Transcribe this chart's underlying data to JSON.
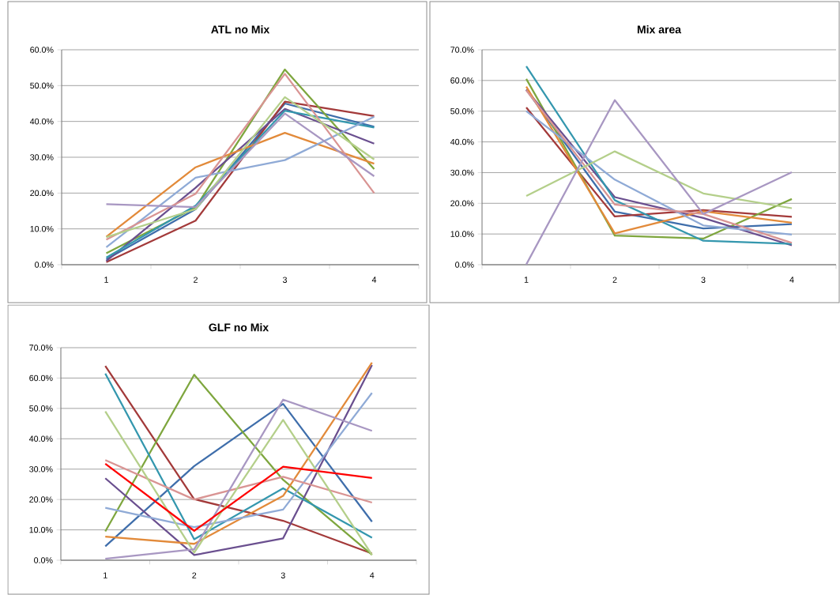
{
  "chart_data": [
    {
      "type": "line",
      "title": "ATL no Mix",
      "categories": [
        "1",
        "2",
        "3",
        "4"
      ],
      "ylim": [
        0,
        60
      ],
      "grid": "y",
      "yticks": [
        {
          "value": 0,
          "label": "0.0%"
        },
        {
          "value": 10,
          "label": "10.0%"
        },
        {
          "value": 20,
          "label": "20.0%"
        },
        {
          "value": 30,
          "label": "30.0%"
        },
        {
          "value": 40,
          "label": "40.0%"
        },
        {
          "value": 50,
          "label": "50.0%"
        },
        {
          "value": 60,
          "label": "60.0%"
        }
      ],
      "series": [
        {
          "color": "#3f6eab",
          "values": [
            1.5,
            15.5,
            45,
            38.5
          ]
        },
        {
          "color": "#a33a3a",
          "values": [
            0.7,
            12.3,
            45.5,
            41.5
          ]
        },
        {
          "color": "#7ea63e",
          "values": [
            3.2,
            16,
            54.5,
            26.7
          ]
        },
        {
          "color": "#6a4f8f",
          "values": [
            1,
            21.5,
            43.5,
            33.8
          ]
        },
        {
          "color": "#3497ae",
          "values": [
            2,
            16.5,
            43,
            38.3
          ]
        },
        {
          "color": "#e28a3a",
          "values": [
            7.8,
            27.2,
            36.8,
            28.2
          ]
        },
        {
          "color": "#8faad6",
          "values": [
            4.9,
            24.3,
            29.2,
            41.3
          ]
        },
        {
          "color": "#d99493",
          "values": [
            7,
            19.8,
            53.3,
            20
          ]
        },
        {
          "color": "#b4cf8a",
          "values": [
            7.7,
            15.5,
            46.8,
            29.4
          ]
        },
        {
          "color": "#a897c2",
          "values": [
            16.9,
            16.1,
            42.2,
            24.7
          ]
        }
      ]
    },
    {
      "type": "line",
      "title": "Mix area",
      "categories": [
        "1",
        "2",
        "3",
        "4"
      ],
      "ylim": [
        0,
        70
      ],
      "grid": "y",
      "yticks": [
        {
          "value": 0,
          "label": "0.0%"
        },
        {
          "value": 10,
          "label": "10.0%"
        },
        {
          "value": 20,
          "label": "20.0%"
        },
        {
          "value": 30,
          "label": "30.0%"
        },
        {
          "value": 40,
          "label": "40.0%"
        },
        {
          "value": 50,
          "label": "50.0%"
        },
        {
          "value": 60,
          "label": "60.0%"
        },
        {
          "value": 70,
          "label": "70.0%"
        }
      ],
      "series": [
        {
          "color": "#3f6eab",
          "values": [
            57,
            17.3,
            11.8,
            13.2
          ]
        },
        {
          "color": "#a33a3a",
          "values": [
            51.2,
            15.7,
            17.8,
            15.6
          ]
        },
        {
          "color": "#7ea63e",
          "values": [
            60.5,
            9.5,
            8.5,
            21.4
          ]
        },
        {
          "color": "#6a4f8f",
          "values": [
            57,
            22,
            15.2,
            6.3
          ]
        },
        {
          "color": "#3497ae",
          "values": [
            64.6,
            21,
            7.8,
            6.8
          ]
        },
        {
          "color": "#e28a3a",
          "values": [
            58,
            10.2,
            17.4,
            13.7
          ]
        },
        {
          "color": "#8faad6",
          "values": [
            50,
            27.7,
            12.8,
            9.8
          ]
        },
        {
          "color": "#d99493",
          "values": [
            56.8,
            19.6,
            16.5,
            7.1
          ]
        },
        {
          "color": "#b4cf8a",
          "values": [
            22.4,
            36.9,
            23.2,
            18.4
          ]
        },
        {
          "color": "#a897c2",
          "values": [
            0.1,
            53.6,
            16.5,
            30.1
          ]
        }
      ]
    },
    {
      "type": "line",
      "title": "GLF no Mix",
      "categories": [
        "1",
        "2",
        "3",
        "4"
      ],
      "ylim": [
        0,
        70
      ],
      "grid": "y",
      "yticks": [
        {
          "value": 0,
          "label": "0.0%"
        },
        {
          "value": 10,
          "label": "10.0%"
        },
        {
          "value": 20,
          "label": "20.0%"
        },
        {
          "value": 30,
          "label": "30.0%"
        },
        {
          "value": 40,
          "label": "40.0%"
        },
        {
          "value": 50,
          "label": "50.0%"
        },
        {
          "value": 60,
          "label": "60.0%"
        },
        {
          "value": 70,
          "label": "70.0%"
        }
      ],
      "series": [
        {
          "color": "#3f6eab",
          "values": [
            4.6,
            31,
            51.5,
            12.7
          ]
        },
        {
          "color": "#a33a3a",
          "values": [
            64,
            20.1,
            13,
            2.2
          ]
        },
        {
          "color": "#7ea63e",
          "values": [
            9.5,
            61.1,
            26.5,
            1.8
          ]
        },
        {
          "color": "#6a4f8f",
          "values": [
            27,
            1.7,
            7.2,
            64.3
          ]
        },
        {
          "color": "#3497ae",
          "values": [
            61.5,
            6.9,
            23.7,
            7.4
          ]
        },
        {
          "color": "#e28a3a",
          "values": [
            7.8,
            5.4,
            21.2,
            65.1
          ]
        },
        {
          "color": "#8faad6",
          "values": [
            17.3,
            10.9,
            16.7,
            55.1
          ]
        },
        {
          "color": "#d99493",
          "values": [
            33,
            20,
            27.5,
            19
          ]
        },
        {
          "color": "#b4cf8a",
          "values": [
            49,
            2.5,
            46.2,
            1.8
          ]
        },
        {
          "color": "#a897c2",
          "values": [
            0.5,
            3.6,
            52.9,
            42.6
          ]
        },
        {
          "color": "#ff0000",
          "values": [
            31.8,
            9.7,
            30.8,
            27.1
          ]
        }
      ]
    }
  ]
}
